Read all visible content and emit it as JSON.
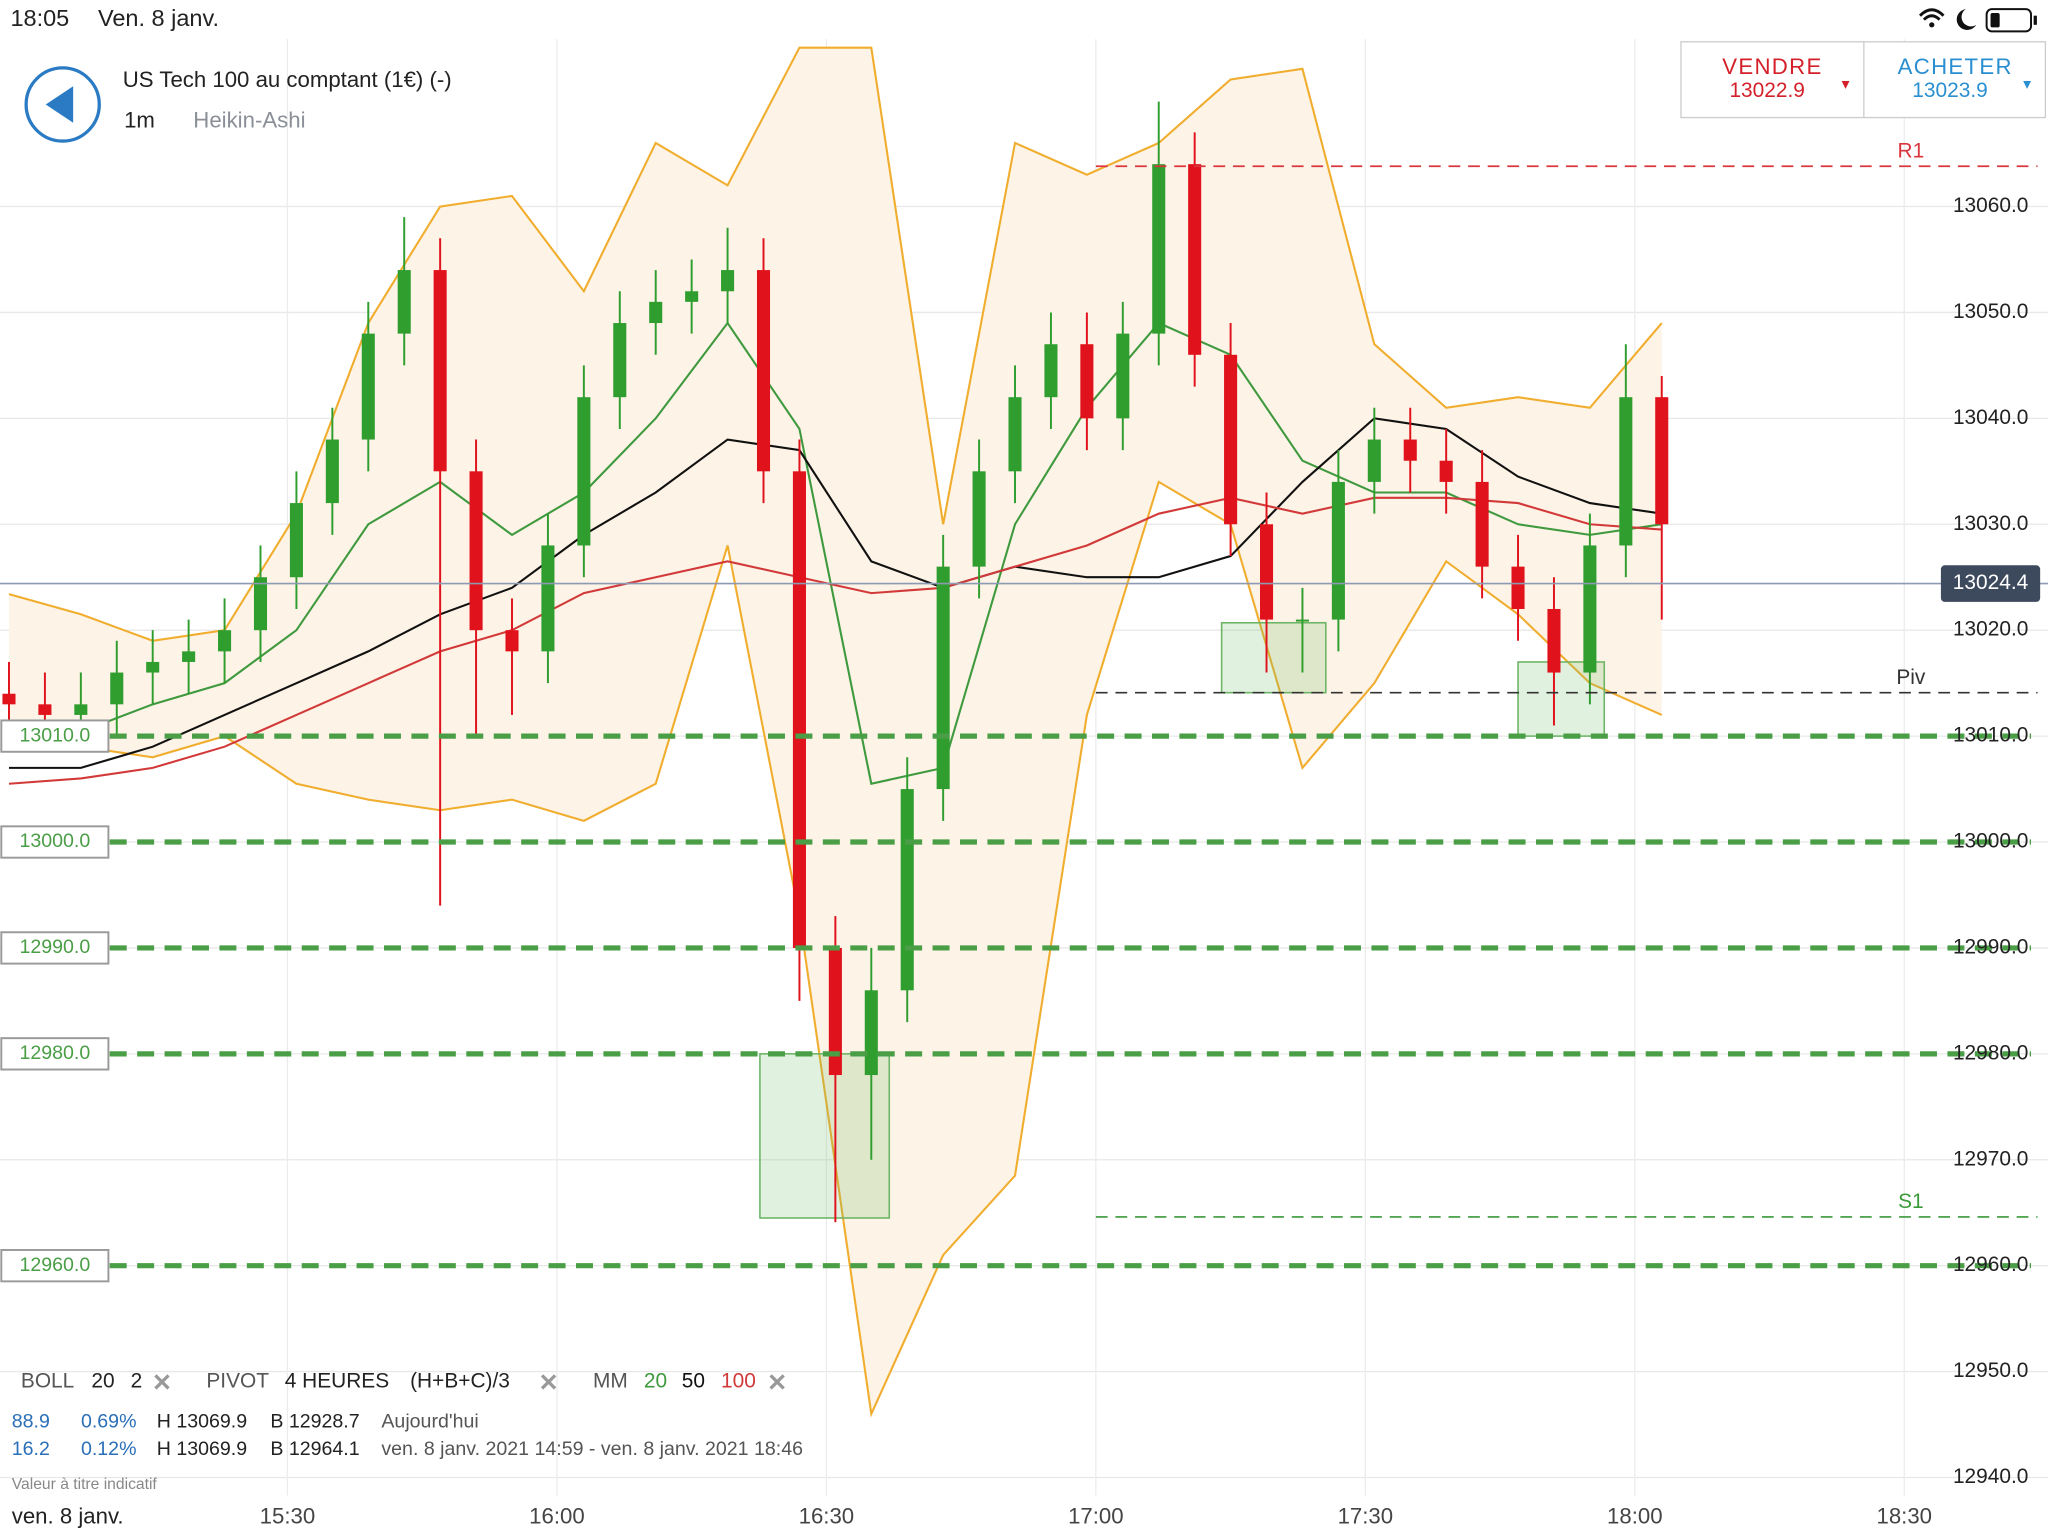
{
  "status_bar": {
    "time": "18:05",
    "date": "Ven. 8 janv."
  },
  "header": {
    "instrument": "US Tech 100 au comptant (1€) (-)",
    "timeframe": "1m",
    "style": "Heikin-Ashi"
  },
  "trade": {
    "sell": {
      "label": "VENDRE",
      "price": "13022.9"
    },
    "buy": {
      "label": "ACHETER",
      "price": "13023.9"
    }
  },
  "chart_data": {
    "type": "candlestick",
    "x": [
      899,
      903,
      907,
      911,
      915,
      919,
      923,
      927,
      931,
      935,
      939,
      943,
      947,
      951,
      955,
      959,
      963,
      967,
      971,
      975,
      979,
      983,
      987,
      991,
      995,
      999,
      1003,
      1007,
      1011,
      1015,
      1019,
      1023,
      1027,
      1031,
      1035,
      1039,
      1043,
      1047,
      1051,
      1055,
      1059,
      1063,
      1067,
      1071,
      1075,
      1079,
      1083
    ],
    "open": [
      13014,
      13013,
      13012,
      13013,
      13016,
      13017,
      13018,
      13020,
      13025,
      13032,
      13038,
      13048,
      13054,
      13035,
      13020,
      13018,
      13028,
      13042,
      13049,
      13051,
      13052,
      13054,
      13035,
      12990,
      12978,
      12986,
      13005,
      13026,
      13035,
      13042,
      13047,
      13040,
      13048,
      13064,
      13046,
      13030,
      13021,
      13021,
      13034,
      13038,
      13036,
      13034,
      13026,
      13022,
      13016,
      13028,
      13042
    ],
    "high": [
      13017,
      13016,
      13016,
      13019,
      13020,
      13021,
      13023,
      13028,
      13035,
      13041,
      13051,
      13059,
      13057,
      13038,
      13023,
      13031,
      13045,
      13052,
      13054,
      13055,
      13058,
      13057,
      13038,
      12993,
      12990,
      13008,
      13029,
      13038,
      13045,
      13050,
      13050,
      13051,
      13069.9,
      13067,
      13049,
      13033,
      13024,
      13037,
      13041,
      13041,
      13039,
      13037,
      13029,
      13025,
      13031,
      13047,
      13044
    ],
    "low": [
      13010,
      13009,
      13009,
      13010,
      13013,
      13014,
      13015,
      13017,
      13022,
      13029,
      13035,
      13045,
      12994,
      13010,
      13012,
      13015,
      13025,
      13039,
      13046,
      13048,
      13049,
      13032,
      12985,
      12964.1,
      12970,
      12983,
      13002,
      13023,
      13032,
      13039,
      13037,
      13037,
      13045,
      13043,
      13027,
      13016,
      13016,
      13018,
      13031,
      13033,
      13031,
      13023,
      13019,
      13011,
      13013,
      13025,
      13021
    ],
    "close": [
      13013,
      13012,
      13013,
      13016,
      13017,
      13018,
      13020,
      13025,
      13032,
      13038,
      13048,
      13054,
      13035,
      13020,
      13018,
      13028,
      13042,
      13049,
      13051,
      13052,
      13054,
      13035,
      12990,
      12978,
      12986,
      13005,
      13026,
      13035,
      13042,
      13047,
      13040,
      13048,
      13064,
      13046,
      13030,
      13021,
      13021,
      13034,
      13038,
      13036,
      13034,
      13026,
      13022,
      13016,
      13028,
      13042,
      13030
    ],
    "up_color": "#2f9e2f",
    "down_color": "#e0121b",
    "xlim": [
      898,
      1126
    ],
    "ylim": [
      12938.3,
      13075.8
    ],
    "xticks": [
      {
        "value": 930,
        "label": "15:30"
      },
      {
        "value": 960,
        "label": "16:00"
      },
      {
        "value": 990,
        "label": "16:30"
      },
      {
        "value": 1020,
        "label": "17:00"
      },
      {
        "value": 1050,
        "label": "17:30"
      },
      {
        "value": 1080,
        "label": "18:00"
      },
      {
        "value": 1110,
        "label": "18:30"
      }
    ],
    "yticks": [
      {
        "value": 12940,
        "label": "12940.0"
      },
      {
        "value": 12950,
        "label": "12950.0"
      },
      {
        "value": 12960,
        "label": "12960.0"
      },
      {
        "value": 12970,
        "label": "12970.0"
      },
      {
        "value": 12980,
        "label": "12980.0"
      },
      {
        "value": 12990,
        "label": "12990.0"
      },
      {
        "value": 13000,
        "label": "13000.0"
      },
      {
        "value": 13010,
        "label": "13010.0"
      },
      {
        "value": 13020,
        "label": "13020.0"
      },
      {
        "value": 13030,
        "label": "13030.0"
      },
      {
        "value": 13040,
        "label": "13040.0"
      },
      {
        "value": 13050,
        "label": "13050.0"
      },
      {
        "value": 13060,
        "label": "13060.0"
      }
    ],
    "grid": true,
    "indicator_x": [
      899,
      907,
      915,
      923,
      931,
      939,
      947,
      955,
      963,
      971,
      979,
      987,
      995,
      1003,
      1011,
      1019,
      1027,
      1035,
      1043,
      1051,
      1059,
      1067,
      1075,
      1083
    ],
    "band": {
      "name": "BOLL",
      "period": "20",
      "deviation": "2",
      "color": "#f0ad2e",
      "fill": "#fdf3e6",
      "upper": [
        13023.4,
        13021.5,
        13019,
        13020,
        13031,
        13049,
        13060,
        13061,
        13052,
        13066,
        13062,
        13075,
        13075,
        13030,
        13066,
        13063,
        13066,
        13072,
        13073,
        13047,
        13041,
        13042,
        13041,
        13049
      ],
      "lower": [
        13009,
        13009,
        13008,
        13010,
        13005.5,
        13004,
        13003,
        13004,
        13002,
        13005.5,
        13028,
        12993,
        12946,
        12961,
        12968.5,
        13012,
        13034,
        13030,
        13007,
        13015,
        13026.5,
        13021.5,
        13015,
        13012
      ]
    },
    "ma_name": "MM",
    "moving_averages": [
      {
        "period": "20",
        "color": "#3f9a3f",
        "values": [
          13010.4,
          13010.4,
          13013,
          13015,
          13020,
          13030,
          13034,
          13029,
          13033,
          13040,
          13049,
          13039,
          13005.5,
          13007,
          13030,
          13041,
          13049,
          13046,
          13036,
          13033,
          13033,
          13030,
          13029,
          13030
        ]
      },
      {
        "period": "50",
        "color": "#111111",
        "values": [
          13007,
          13007,
          13009,
          13012,
          13015,
          13018,
          13021.5,
          13024,
          13029,
          13033,
          13038,
          13037,
          13026.5,
          13024,
          13026,
          13025,
          13025,
          13027,
          13034,
          13040,
          13039,
          13034.5,
          13032,
          13031
        ]
      },
      {
        "period": "100",
        "color": "#d23a3a",
        "values": [
          13005.5,
          13006,
          13007,
          13009,
          13012,
          13015,
          13018,
          13020,
          13023.5,
          13025,
          13026.5,
          13025,
          13023.5,
          13024,
          13026,
          13028,
          13031,
          13032.5,
          13031,
          13032.5,
          13032.5,
          13032,
          13030,
          13029.5
        ]
      }
    ],
    "levels": [
      {
        "value": 13010,
        "label": "13010.0"
      },
      {
        "value": 13000,
        "label": "13000.0"
      },
      {
        "value": 12990,
        "label": "12990.0"
      },
      {
        "value": 12980,
        "label": "12980.0"
      },
      {
        "value": 12960,
        "label": "12960.0"
      }
    ],
    "level_color": "#4a9e46",
    "pivot": {
      "name": "PIVOT",
      "period": "4 HEURES",
      "formula": "(H+B+C)/3",
      "start": 1020,
      "lines": [
        {
          "name": "R1",
          "value": 13063.8,
          "color": "#d9363e"
        },
        {
          "name": "Piv",
          "value": 13014.1,
          "color": "#333333"
        },
        {
          "name": "S1",
          "value": 12964.6,
          "color": "#3a9a3a"
        }
      ]
    },
    "last_price": {
      "value": 13024.4,
      "label": "13024.4"
    },
    "zones": [
      {
        "x": [
          982.6,
          997
        ],
        "y": [
          12964.5,
          12980
        ]
      },
      {
        "x": [
          1034,
          1045.6
        ],
        "y": [
          13014.1,
          13020.7
        ]
      },
      {
        "x": [
          1067,
          1076.6
        ],
        "y": [
          13010,
          13017
        ]
      }
    ],
    "date_label": "ven. 8 janv."
  },
  "stats": [
    {
      "points": "88.9",
      "percent": "0.69%",
      "high": "H 13069.9",
      "low": "B 12928.7",
      "range": "Aujourd'hui"
    },
    {
      "points": "16.2",
      "percent": "0.12%",
      "high": "H 13069.9",
      "low": "B 12964.1",
      "range": "ven. 8 janv. 2021 14:59 - ven. 8 janv. 2021 18:46"
    }
  ],
  "disclaimer": "Valeur à titre indicatif"
}
